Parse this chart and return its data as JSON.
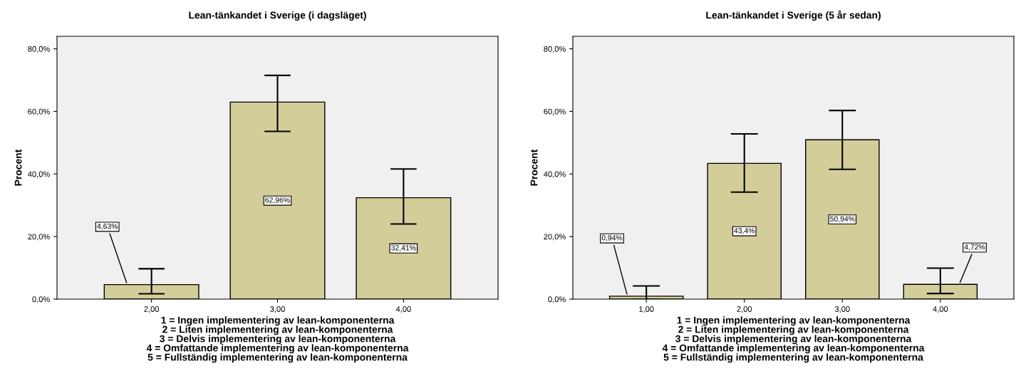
{
  "chart_data": [
    {
      "type": "bar",
      "title": "Lean-tänkandet i Sverige (i dagsläget)",
      "ylabel": "Procent",
      "xlabel": "1 = Ingen implementering av lean-komponenterna\n2 = Liten implementering av lean-komponenterna\n3 = Delvis implementering av lean-komponenterna\n4 = Omfattande implementering av lean-komponenterna\n5 = Fullständig implementering av lean-komponenterna",
      "categories": [
        "2,00",
        "3,00",
        "4,00"
      ],
      "values": [
        4.63,
        62.96,
        32.41
      ],
      "color": "#d3ce99",
      "errors": [
        [
          1.7,
          9.7
        ],
        [
          53.6,
          71.5
        ],
        [
          24.0,
          41.6
        ]
      ],
      "value_labels": [
        "4,63%",
        "62,96%",
        "32,41%"
      ],
      "ylim": [
        0,
        84
      ],
      "yticks": [
        {
          "value": 0,
          "label": "0,0%"
        },
        {
          "value": 20,
          "label": "20,0%"
        },
        {
          "value": 40,
          "label": "40,0%"
        },
        {
          "value": 60,
          "label": "60,0%"
        },
        {
          "value": 80,
          "label": "80,0%"
        }
      ],
      "grid": false
    },
    {
      "type": "bar",
      "title": "Lean-tänkandet i Sverige (5 år sedan)",
      "ylabel": "Procent",
      "xlabel": "1 = Ingen implementering av lean-komponenterna\n2 = Liten implementering av lean-komponenterna\n3 = Delvis implementering av lean-komponenterna\n4 = Omfattande implementering av lean-komponenterna\n5 = Fullständig implementering av lean-komponenterna",
      "categories": [
        "1,00",
        "2,00",
        "3,00",
        "4,00"
      ],
      "values": [
        0.94,
        43.4,
        50.94,
        4.72
      ],
      "color": "#d3ce99",
      "errors": [
        [
          0,
          4.2
        ],
        [
          34.2,
          52.8
        ],
        [
          41.5,
          60.3
        ],
        [
          1.8,
          9.9
        ]
      ],
      "value_labels": [
        "0,94%",
        "43,4%",
        "50,94%",
        "4,72%"
      ],
      "ylim": [
        0,
        84
      ],
      "yticks": [
        {
          "value": 0,
          "label": "0,0%"
        },
        {
          "value": 20,
          "label": "20,0%"
        },
        {
          "value": 40,
          "label": "40,0%"
        },
        {
          "value": 60,
          "label": "60,0%"
        },
        {
          "value": 80,
          "label": "80,0%"
        }
      ],
      "grid": false
    }
  ]
}
